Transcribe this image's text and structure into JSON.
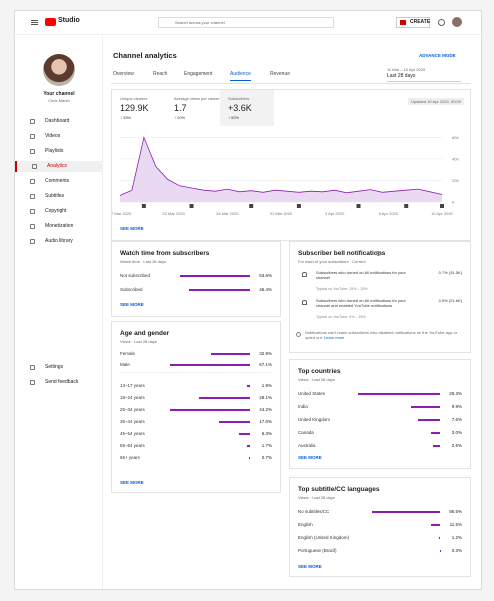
{
  "header": {
    "logo": "Studio",
    "search_placeholder": "Search across your channel",
    "create": "CREATE"
  },
  "sidebar": {
    "channel_label": "Your channel",
    "channel_name": "Chris Marsh",
    "nav": [
      "Dashboard",
      "Videos",
      "Playlists",
      "Analytics",
      "Comments",
      "Subtitles",
      "Copyright",
      "Monetization",
      "Audio library"
    ],
    "active": 3,
    "bottom": [
      "Settings",
      "Send feedback"
    ]
  },
  "page": {
    "title": "Channel analytics",
    "advanced": "ADVANCE MODE",
    "date_range": "11 Mar – 10 Apr 2020",
    "period": "Last 28 days",
    "tabs": [
      "Overview",
      "Reach",
      "Engagement",
      "Audience",
      "Revenue"
    ],
    "active_tab": 3
  },
  "metrics": {
    "updated": "Updated 10 Apr 2020, 00:00",
    "items": [
      {
        "label": "Unique viewers",
        "value": "129.9K",
        "change": "↑ 33%"
      },
      {
        "label": "Average views per viewer",
        "value": "1.7",
        "change": "↑ 20%"
      },
      {
        "label": "Subscribers",
        "value": "+3.6K",
        "change": "↑ 52%"
      }
    ],
    "chart": {
      "values": [
        60,
        110,
        600,
        330,
        210,
        150,
        130,
        110,
        100,
        120,
        95,
        105,
        90,
        110,
        100,
        90,
        100,
        95,
        110,
        85,
        100,
        115,
        90,
        100,
        110,
        120,
        95,
        70
      ],
      "ylim": [
        0,
        650
      ],
      "yticks": [
        0,
        200,
        400,
        600
      ],
      "xlabels": [
        "17 Mar 2020",
        "22 Mar 2020",
        "26 Mar 2020",
        "31 Mar 2020",
        "3 Apr 2020",
        "8 Apr 2020",
        "10 Apr 2020"
      ]
    },
    "see_more": "SEE MORE"
  },
  "watch_time": {
    "title": "Watch time from subscribers",
    "subtitle": "Watch time · Last 28 days",
    "rows": [
      {
        "label": "Not subscribed",
        "value": 53.6,
        "value_label": "53.6%"
      },
      {
        "label": "Subscribed",
        "value": 46.4,
        "value_label": "46.4%"
      }
    ],
    "see_more": "SEE MORE"
  },
  "bell": {
    "title": "Subscriber bell notifications",
    "subtitle": "For each of your subscribers · Current",
    "rows": [
      {
        "text": "Subscribers who turned on All notifications for your channel",
        "value_label": "0.7% (31.5K)",
        "typical": "Typical on YouTube: 15% – 25%"
      },
      {
        "text": "Subscribers who turned on All notifications for your channel and enabled YouTube notifications",
        "value_label": "0.5% (21.6K)",
        "typical": "Typical on YouTube: 5% – 15%"
      }
    ],
    "note": "Notifications can't reach subscribers who disabled notifications on the YouTube app or opted out.",
    "learn_more": "Learn more"
  },
  "age_gender": {
    "title": "Age and gender",
    "subtitle": "Views · Last 28 days",
    "gender": [
      {
        "label": "Female",
        "value": 32.9,
        "value_label": "32.9%"
      },
      {
        "label": "Male",
        "value": 67.1,
        "value_label": "67.1%"
      }
    ],
    "ages": [
      {
        "label": "13–17 years",
        "value": 1.9,
        "value_label": "1.9%"
      },
      {
        "label": "18–24 years",
        "value": 28.1,
        "value_label": "28.1%"
      },
      {
        "label": "25–34 years",
        "value": 44.2,
        "value_label": "44.2%"
      },
      {
        "label": "35–44 years",
        "value": 17.0,
        "value_label": "17.0%"
      },
      {
        "label": "45–54 years",
        "value": 6.3,
        "value_label": "6.3%"
      },
      {
        "label": "55–64 years",
        "value": 1.7,
        "value_label": "1.7%"
      },
      {
        "label": "65+ years",
        "value": 0.7,
        "value_label": "0.7%"
      }
    ],
    "see_more": "SEE MORE"
  },
  "countries": {
    "title": "Top countries",
    "subtitle": "Views · Last 28 days",
    "rows": [
      {
        "label": "United States",
        "value": 28.3,
        "value_label": "28.3%"
      },
      {
        "label": "India",
        "value": 9.9,
        "value_label": "9.9%"
      },
      {
        "label": "United Kingdom",
        "value": 7.6,
        "value_label": "7.6%"
      },
      {
        "label": "Canada",
        "value": 3.0,
        "value_label": "3.0%"
      },
      {
        "label": "Australia",
        "value": 2.5,
        "value_label": "2.5%"
      }
    ],
    "see_more": "SEE MORE"
  },
  "languages": {
    "title": "Top subtitle/CC languages",
    "subtitle": "Views · Last 28 days",
    "rows": [
      {
        "label": "No subtitles/CC",
        "value": 86.5,
        "value_label": "86.5%"
      },
      {
        "label": "English",
        "value": 11.5,
        "value_label": "11.5%"
      },
      {
        "label": "English (United Kingdom)",
        "value": 1.2,
        "value_label": "1.2%"
      },
      {
        "label": "Portuguese (Brazil)",
        "value": 0.3,
        "value_label": "0.3%"
      }
    ],
    "see_more": "SEE MORE"
  }
}
